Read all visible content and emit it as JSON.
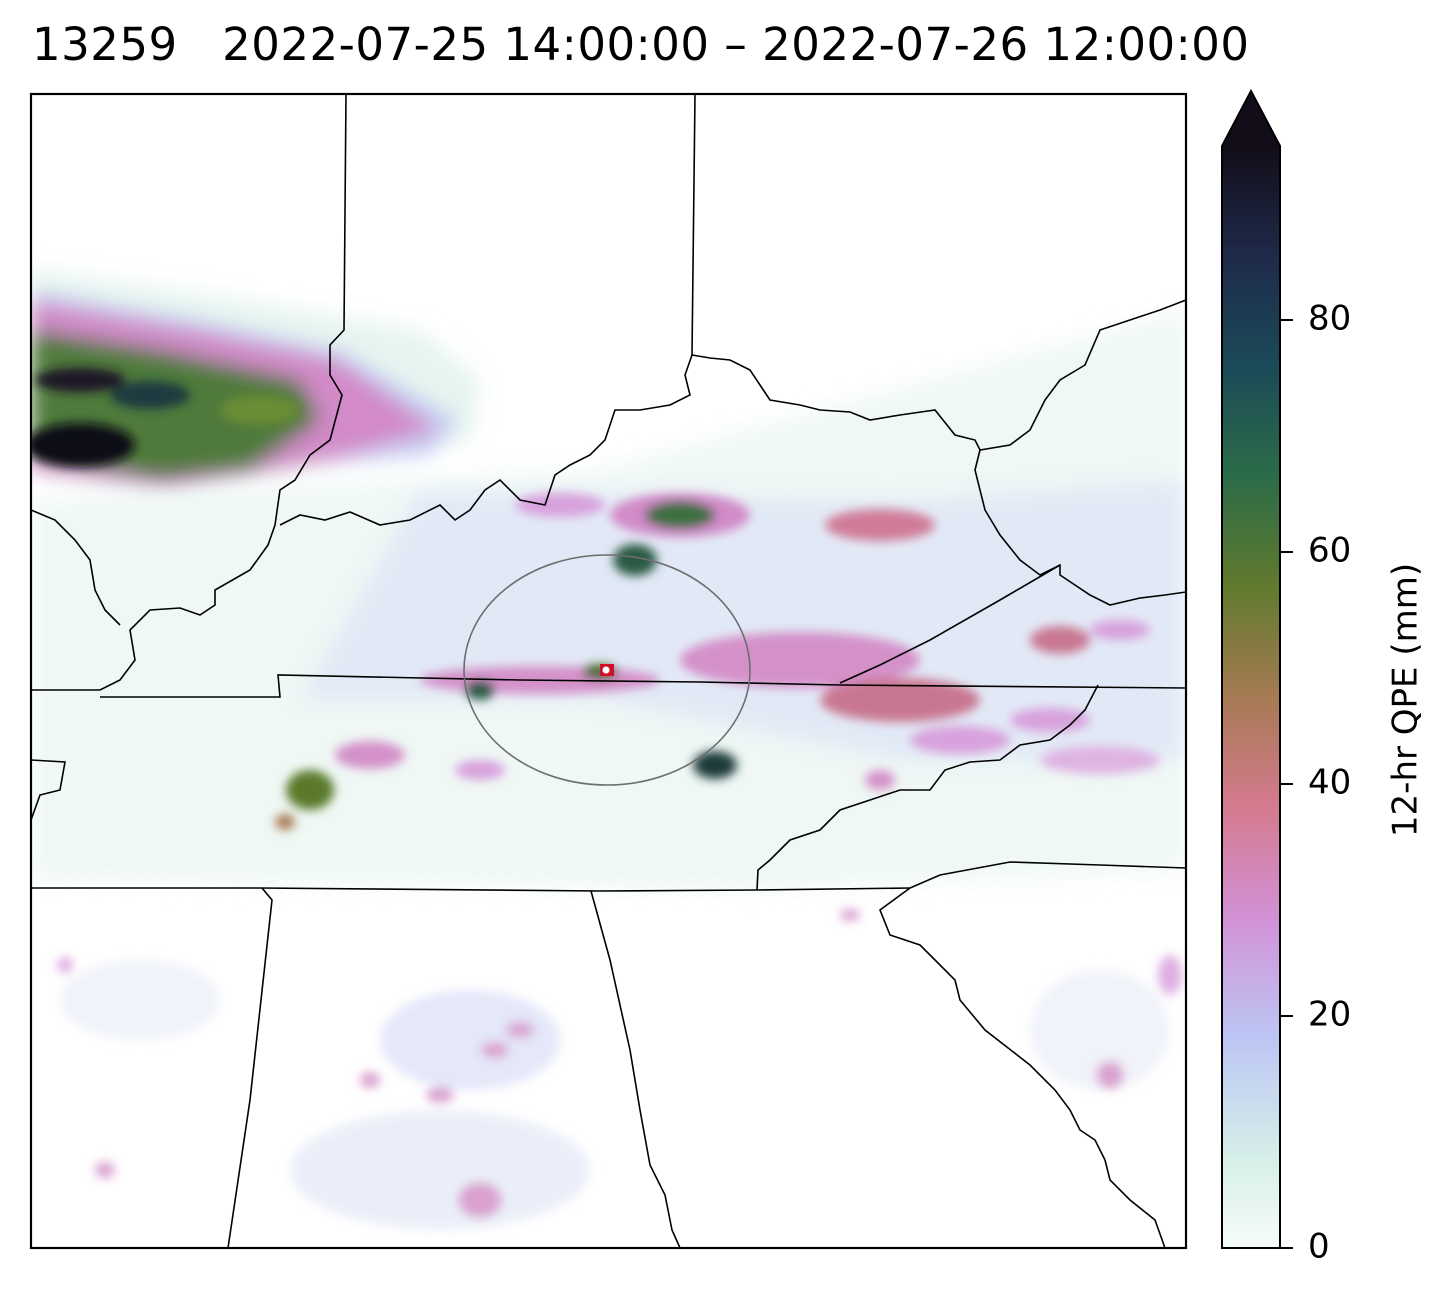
{
  "title": {
    "id": "13259",
    "range": "2022-07-25 14:00:00 – 2022-07-26 12:00:00"
  },
  "colorbar": {
    "label": "12-hr QPE (mm)",
    "min": 0,
    "max": 95,
    "extend": "max",
    "ticks": [
      0,
      20,
      40,
      60,
      80
    ],
    "colormap": "cubehelix-like",
    "stops": [
      "#f7fcf9",
      "#d6efe8",
      "#bcc6f4",
      "#d291d6",
      "#d57a8f",
      "#a67a53",
      "#617a2e",
      "#2c6c48",
      "#1b4a58",
      "#1e2a4a",
      "#120d18"
    ]
  },
  "map": {
    "marker_color": "#d0102a",
    "circle_color": "#6e6e6e",
    "border_color": "#000000"
  }
}
